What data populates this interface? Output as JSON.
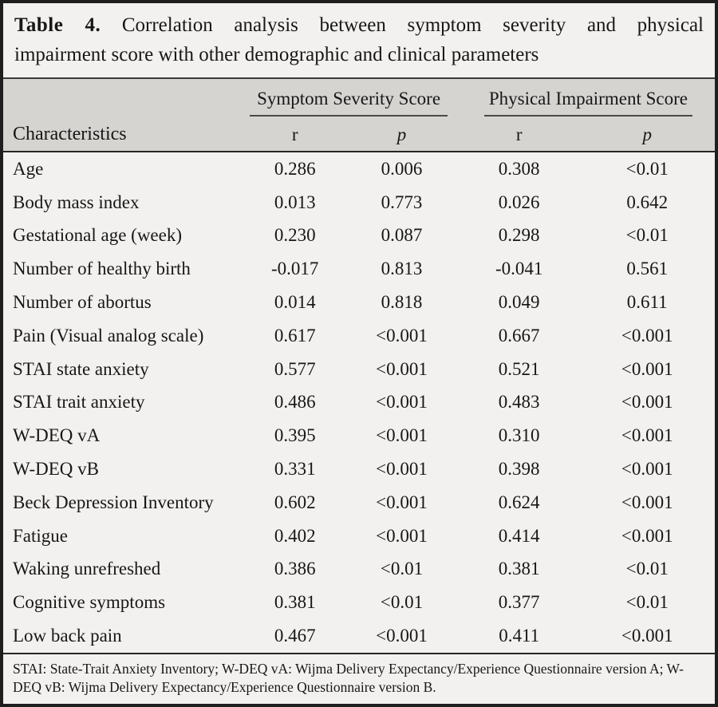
{
  "title": {
    "label": "Table 4.",
    "line1": "Correlation analysis between symptom severity and physical",
    "line2": "impairment score with other demographic and clinical parameters"
  },
  "table": {
    "header": {
      "characteristics": "Characteristics",
      "groups": [
        {
          "label": "Symptom Severity Score"
        },
        {
          "label": "Physical Impairment Score"
        }
      ],
      "sub_columns": {
        "r": "r",
        "p": "p"
      }
    },
    "rows": [
      {
        "label": "Age",
        "ss_r": "0.286",
        "ss_p": "0.006",
        "pi_r": "0.308",
        "pi_p": "<0.01"
      },
      {
        "label": "Body mass index",
        "ss_r": "0.013",
        "ss_p": "0.773",
        "pi_r": "0.026",
        "pi_p": "0.642"
      },
      {
        "label": "Gestational age (week)",
        "ss_r": "0.230",
        "ss_p": "0.087",
        "pi_r": "0.298",
        "pi_p": "<0.01"
      },
      {
        "label": "Number of healthy birth",
        "ss_r": "-0.017",
        "ss_p": "0.813",
        "pi_r": "-0.041",
        "pi_p": "0.561"
      },
      {
        "label": "Number of abortus",
        "ss_r": "0.014",
        "ss_p": "0.818",
        "pi_r": "0.049",
        "pi_p": "0.611"
      },
      {
        "label": "Pain (Visual analog scale)",
        "ss_r": "0.617",
        "ss_p": "<0.001",
        "pi_r": "0.667",
        "pi_p": "<0.001"
      },
      {
        "label": "STAI state anxiety",
        "ss_r": "0.577",
        "ss_p": "<0.001",
        "pi_r": "0.521",
        "pi_p": "<0.001"
      },
      {
        "label": "STAI trait anxiety",
        "ss_r": "0.486",
        "ss_p": "<0.001",
        "pi_r": "0.483",
        "pi_p": "<0.001"
      },
      {
        "label": "W-DEQ vA",
        "ss_r": "0.395",
        "ss_p": "<0.001",
        "pi_r": "0.310",
        "pi_p": "<0.001"
      },
      {
        "label": "W-DEQ vB",
        "ss_r": "0.331",
        "ss_p": "<0.001",
        "pi_r": "0.398",
        "pi_p": "<0.001"
      },
      {
        "label": "Beck Depression Inventory",
        "ss_r": "0.602",
        "ss_p": "<0.001",
        "pi_r": "0.624",
        "pi_p": "<0.001"
      },
      {
        "label": "Fatigue",
        "ss_r": "0.402",
        "ss_p": "<0.001",
        "pi_r": "0.414",
        "pi_p": "<0.001"
      },
      {
        "label": "Waking unrefreshed",
        "ss_r": "0.386",
        "ss_p": "<0.01",
        "pi_r": "0.381",
        "pi_p": "<0.01"
      },
      {
        "label": "Cognitive symptoms",
        "ss_r": "0.381",
        "ss_p": "<0.01",
        "pi_r": "0.377",
        "pi_p": "<0.01"
      },
      {
        "label": "Low back pain",
        "ss_r": "0.467",
        "ss_p": "<0.001",
        "pi_r": "0.411",
        "pi_p": "<0.001"
      }
    ]
  },
  "footnote": "STAI: State-Trait Anxiety Inventory; W-DEQ vA: Wijma Delivery Expectancy/Experience Questionnaire version A; W-DEQ vB: Wijma Delivery Expectancy/Experience Questionnaire version B.",
  "colors": {
    "frame_border": "#1e1e1e",
    "page_background": "#f2f1ef",
    "header_background": "#d5d4d1",
    "rule_dark": "#262626",
    "text": "#171717"
  }
}
